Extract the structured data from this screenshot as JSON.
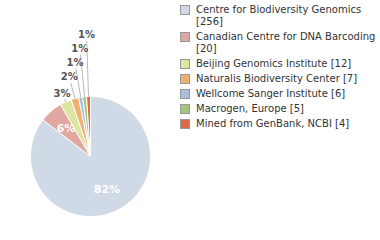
{
  "chart_data": {
    "type": "pie",
    "categories": [
      "Centre for Biodiversity Genomics [256]",
      "Canadian Centre for DNA Barcoding [20]",
      "Beijing Genomics Institute [12]",
      "Naturalis Biodiversity Center [7]",
      "Wellcome Sanger Institute [6]",
      "Macrogen, Europe [5]",
      "Mined from GenBank, NCBI [4]"
    ],
    "values": [
      82,
      6,
      3,
      2,
      1,
      1,
      1
    ],
    "value_labels": [
      "82%",
      "6%",
      "3%",
      "2%",
      "1%",
      "1%",
      "1%"
    ],
    "colors": [
      "#cfdae6",
      "#e0a8a0",
      "#dde6a0",
      "#f0b070",
      "#a8bfe0",
      "#a0c878",
      "#e06848"
    ],
    "data_labels": true,
    "legend": "right"
  }
}
